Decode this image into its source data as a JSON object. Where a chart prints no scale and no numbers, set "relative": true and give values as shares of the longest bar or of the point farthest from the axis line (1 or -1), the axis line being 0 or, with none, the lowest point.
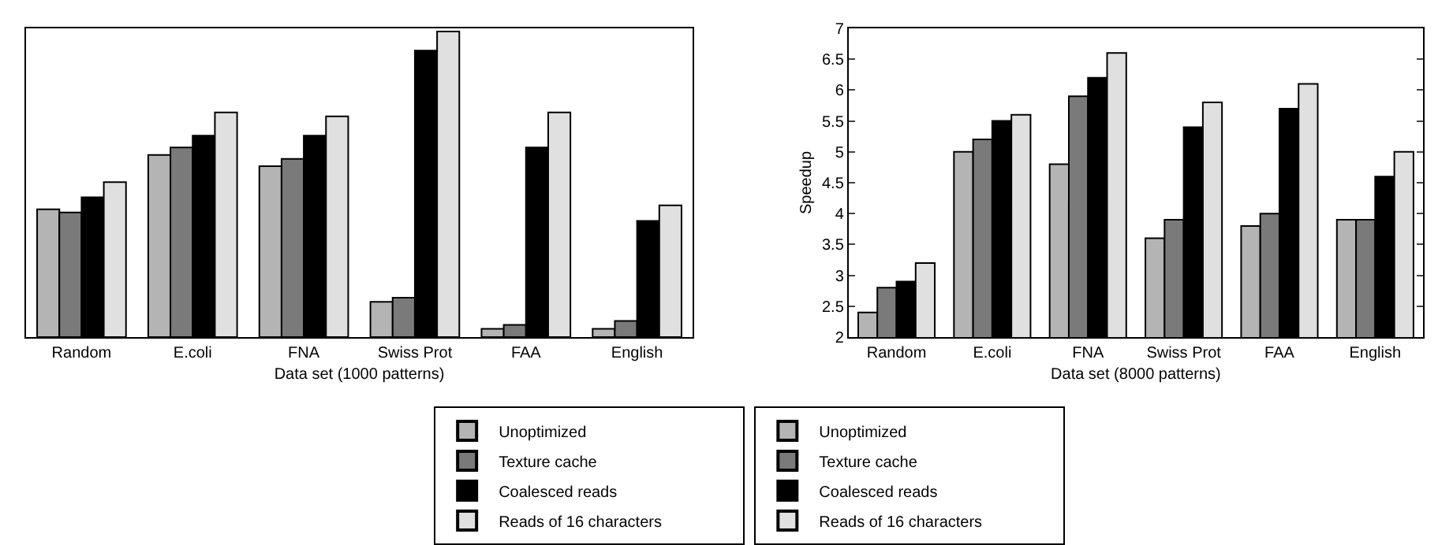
{
  "chart_data": [
    {
      "type": "bar",
      "relative": true,
      "xlabel": "Data set (1000 patterns)",
      "legend": "bottom",
      "grid": false,
      "categories": [
        "Random",
        "E.coli",
        "FNA",
        "Swiss Prot",
        "FAA",
        "English"
      ],
      "series": [
        {
          "name": "Unoptimized",
          "color": "#b4b4b4",
          "values": [
            0.418,
            0.596,
            0.559,
            0.115,
            0.027,
            0.027
          ]
        },
        {
          "name": "Texture cache",
          "color": "#7a7a7a",
          "values": [
            0.408,
            0.62,
            0.583,
            0.129,
            0.04,
            0.053
          ]
        },
        {
          "name": "Coalesced reads",
          "color": "#000000",
          "values": [
            0.457,
            0.659,
            0.659,
            0.937,
            0.62,
            0.38
          ]
        },
        {
          "name": "Reads of 16 characters",
          "color": "#e0e0e0",
          "values": [
            0.507,
            0.735,
            0.722,
            1.0,
            0.735,
            0.431
          ]
        }
      ]
    },
    {
      "type": "bar",
      "xlabel": "Data set (8000 patterns)",
      "ylabel": "Speedup",
      "legend": "bottom",
      "grid": false,
      "ylim": [
        2,
        7
      ],
      "yticks": [
        2,
        2.5,
        3,
        3.5,
        4,
        4.5,
        5,
        5.5,
        6,
        6.5,
        7
      ],
      "categories": [
        "Random",
        "E.coli",
        "FNA",
        "Swiss Prot",
        "FAA",
        "English"
      ],
      "series": [
        {
          "name": "Unoptimized",
          "color": "#b4b4b4",
          "values": [
            2.4,
            5.0,
            4.8,
            3.6,
            3.8,
            3.9
          ]
        },
        {
          "name": "Texture cache",
          "color": "#7a7a7a",
          "values": [
            2.8,
            5.2,
            5.9,
            3.9,
            4.0,
            3.9
          ]
        },
        {
          "name": "Coalesced reads",
          "color": "#000000",
          "values": [
            2.9,
            5.5,
            6.2,
            5.4,
            5.7,
            4.6
          ]
        },
        {
          "name": "Reads of 16 characters",
          "color": "#e0e0e0",
          "values": [
            3.2,
            5.6,
            6.6,
            5.8,
            6.1,
            5.0
          ]
        }
      ]
    }
  ]
}
